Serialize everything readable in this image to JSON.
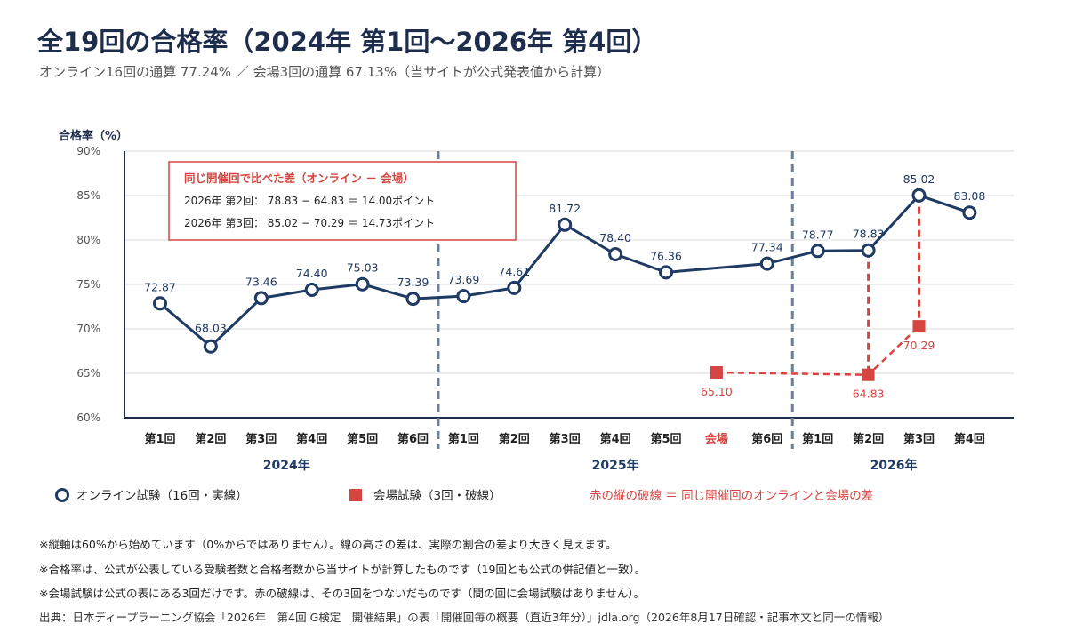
{
  "title": "全19回の合格率（2024年 第1回〜2026年 第4回）",
  "subtitle": "オンライン16回の通算 77.24% ／ 会場3回の通算 67.13%（当サイトが公式発表値から計算）",
  "colors": {
    "navy": "#1f3a63",
    "red": "#d64541",
    "divider": "#6b7f95",
    "grid": "#d9d9d9"
  },
  "chart_data": {
    "type": "line",
    "ylabel": "合格率（%）",
    "ylim": [
      60,
      90
    ],
    "yticks": [
      "60%",
      "65%",
      "70%",
      "75%",
      "80%",
      "85%",
      "90%"
    ],
    "grid": true,
    "categories": [
      "第1回",
      "第2回",
      "第3回",
      "第4回",
      "第5回",
      "第6回",
      "第1回",
      "第2回",
      "第3回",
      "第4回",
      "第5回",
      "会場",
      "第6回",
      "第1回",
      "第2回",
      "第3回",
      "第4回"
    ],
    "year_labels": [
      {
        "label": "2024年",
        "from": 0,
        "to": 5
      },
      {
        "label": "2025年",
        "from": 6,
        "to": 12
      },
      {
        "label": "2026年",
        "from": 13,
        "to": 16
      }
    ],
    "year_dividers_after": [
      5,
      12
    ],
    "series": [
      {
        "name": "オンライン試験（16回・実線）",
        "style": "solid-circle",
        "points": [
          {
            "i": 0,
            "v": 72.87,
            "label": "72.87"
          },
          {
            "i": 1,
            "v": 68.03,
            "label": "68.03"
          },
          {
            "i": 2,
            "v": 73.46,
            "label": "73.46"
          },
          {
            "i": 3,
            "v": 74.4,
            "label": "74.40"
          },
          {
            "i": 4,
            "v": 75.03,
            "label": "75.03"
          },
          {
            "i": 5,
            "v": 73.39,
            "label": "73.39"
          },
          {
            "i": 6,
            "v": 73.69,
            "label": "73.69"
          },
          {
            "i": 7,
            "v": 74.61,
            "label": "74.61"
          },
          {
            "i": 8,
            "v": 81.72,
            "label": "81.72"
          },
          {
            "i": 9,
            "v": 78.4,
            "label": "78.40"
          },
          {
            "i": 10,
            "v": 76.36,
            "label": "76.36"
          },
          {
            "i": 12,
            "v": 77.34,
            "label": "77.34"
          },
          {
            "i": 13,
            "v": 78.77,
            "label": "78.77"
          },
          {
            "i": 14,
            "v": 78.83,
            "label": "78.83"
          },
          {
            "i": 15,
            "v": 85.02,
            "label": "85.02"
          },
          {
            "i": 16,
            "v": 83.08,
            "label": "83.08"
          }
        ]
      },
      {
        "name": "会場試験（3回・破線）",
        "style": "dashed-square",
        "points": [
          {
            "i": 11,
            "v": 65.1,
            "label": "65.10"
          },
          {
            "i": 14,
            "v": 64.83,
            "label": "64.83"
          },
          {
            "i": 15,
            "v": 70.29,
            "label": "70.29"
          }
        ]
      }
    ],
    "gap_lines": [
      {
        "i": 14,
        "from": 78.83,
        "to": 64.83
      },
      {
        "i": 15,
        "from": 85.02,
        "to": 70.29
      }
    ],
    "annotation": {
      "title": "同じ開催回で比べた差（オンライン － 会場）",
      "lines": [
        "2026年 第2回： 78.83 − 64.83 ＝ 14.00ポイント",
        "2026年 第3回： 85.02 − 70.29 ＝ 14.73ポイント"
      ]
    },
    "legend": {
      "online": "オンライン試験（16回・実線）",
      "venue": "会場試験（3回・破線）",
      "gap_note": "赤の縦の破線 ＝ 同じ開催回のオンラインと会場の差"
    }
  },
  "notes": [
    "※縦軸は60%から始めています（0%からではありません）。線の高さの差は、実際の割合の差より大きく見えます。",
    "※合格率は、公式が公表している受験者数と合格者数から当サイトが計算したものです（19回とも公式の併記値と一致）。",
    "※会場試験は公式の表にある3回だけです。赤の破線は、その3回をつないだものです（間の回に会場試験はありません）。"
  ],
  "source": "出典：日本ディープラーニング協会「2026年　第4回 G検定　開催結果」の表「開催回毎の概要（直近3年分）」jdla.org（2026年8月17日確認・記事本文と同一の情報）"
}
